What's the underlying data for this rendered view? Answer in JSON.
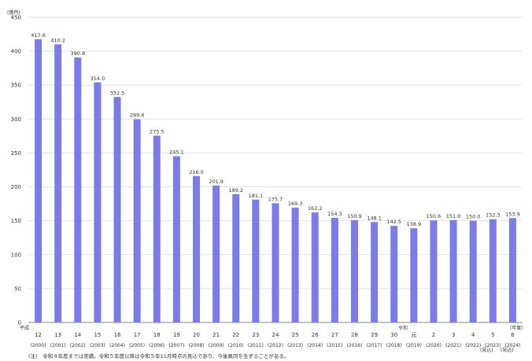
{
  "chart_data": {
    "type": "bar",
    "ylabel": "(億円)",
    "ylim": [
      0,
      450
    ],
    "yticks": [
      0,
      50,
      100,
      150,
      200,
      250,
      300,
      350,
      400,
      450
    ],
    "grid": true,
    "bar_color": "#7b7bea",
    "categories": [
      "12",
      "13",
      "14",
      "15",
      "16",
      "17",
      "18",
      "19",
      "20",
      "21",
      "22",
      "23",
      "24",
      "25",
      "26",
      "27",
      "28",
      "29",
      "30",
      "元",
      "2",
      "3",
      "4",
      "5",
      "6"
    ],
    "years": [
      "(2000)",
      "(2001)",
      "(2002)",
      "(2003)",
      "(2004)",
      "(2005)",
      "(2006)",
      "(2007)",
      "(2008)",
      "(2009)",
      "(2010)",
      "(2011)",
      "(2012)",
      "(2013)",
      "(2014)",
      "(2015)",
      "(2016)",
      "(2017)",
      "(2018)",
      "(2019)",
      "(2020)",
      "(2021)",
      "(2022)",
      "(2023)",
      "(2024)"
    ],
    "values": [
      417.6,
      410.2,
      390.8,
      354.0,
      332.5,
      299.6,
      275.5,
      245.1,
      216.0,
      201.9,
      189.2,
      181.1,
      175.7,
      169.3,
      162.2,
      154.3,
      150.9,
      148.1,
      142.5,
      138.9,
      150.6,
      151.0,
      150.0,
      152.3,
      153.9
    ],
    "data_labels": [
      "417.6",
      "410.2",
      "390.8",
      "354.0",
      "332.5",
      "299.6",
      "275.5",
      "245.1",
      "216.0",
      "201.9",
      "189.2",
      "181.1",
      "175.7",
      "169.3",
      "162.2",
      "154.3",
      "150.9",
      "148.1",
      "142.5",
      "138.9",
      "150.6",
      "151.0",
      "150.0",
      "152.3",
      "153.9"
    ],
    "era_labels": {
      "heisei": "平成",
      "reiwa": "令和"
    },
    "x_unit": "(年度)",
    "estimate_marks": [
      "(見込)",
      "(見込)"
    ],
    "note": "(注)　令和４年度までは実績。令和５年度以降は令和５年11月時点の見込であり、今後異同を生ずることがある。"
  }
}
